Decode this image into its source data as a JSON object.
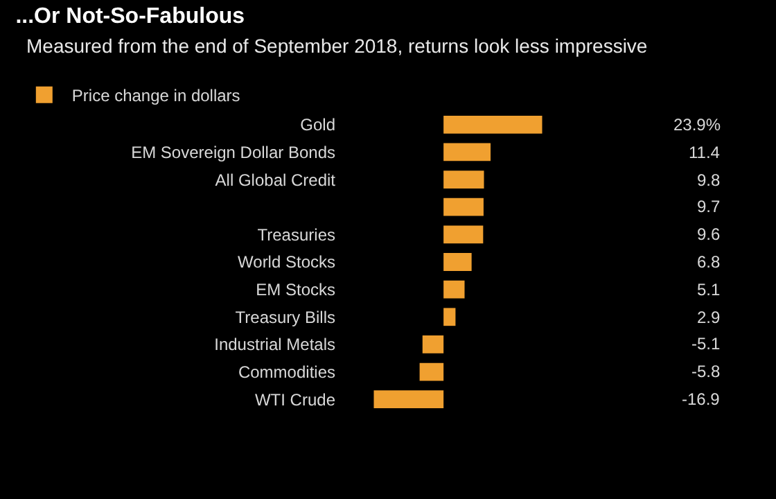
{
  "chart_data": {
    "type": "bar",
    "orientation": "horizontal",
    "title": "...Or Not-So-Fabulous",
    "subtitle": "Measured from the end of September 2018, returns look less impressive",
    "categories": [
      "Gold",
      "EM Sovereign Dollar Bonds",
      "All Global Credit",
      null,
      "Treasuries",
      "World Stocks",
      "EM Stocks",
      "Treasury Bills",
      "Industrial Metals",
      "Commodities",
      "WTI Crude"
    ],
    "series": [
      {
        "name": "Price change in dollars",
        "color": "#f0a030",
        "values": [
          23.9,
          11.4,
          9.8,
          9.7,
          9.6,
          6.8,
          5.1,
          2.9,
          -5.1,
          -5.8,
          -16.9
        ],
        "value_labels": [
          "23.9%",
          "11.4",
          "9.8",
          "9.7",
          "9.6",
          "6.8",
          "5.1",
          "2.9",
          "-5.1",
          "-5.8",
          "-16.9"
        ]
      }
    ],
    "legend": "top left",
    "grid": false
  }
}
